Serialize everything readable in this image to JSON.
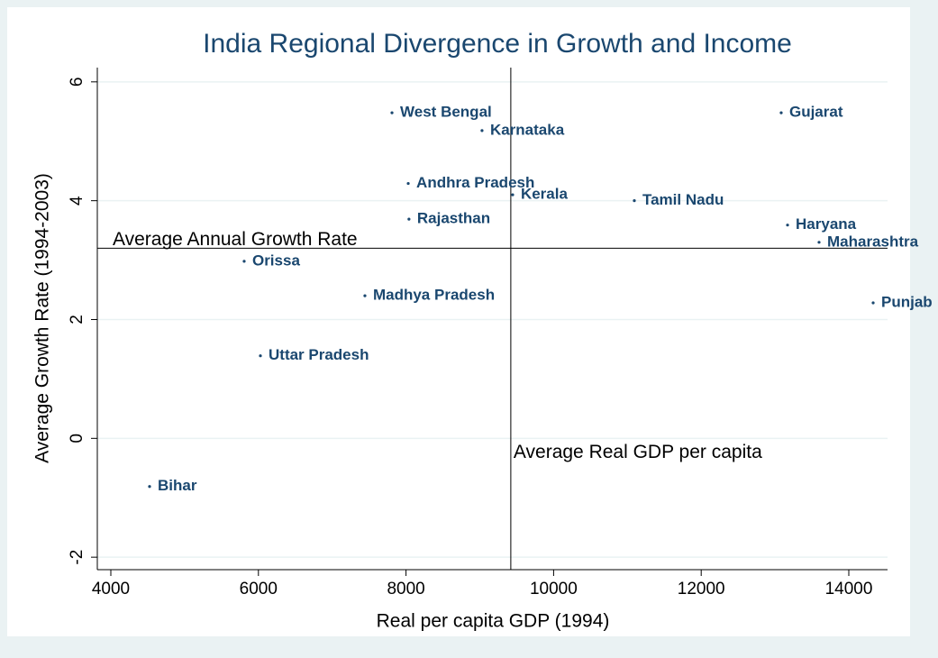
{
  "chart_data": {
    "type": "scatter",
    "title": "India Regional Divergence in Growth and Income",
    "x_label": "Real per capita GDP (1994)",
    "y_label": "Average Growth Rate (1994-2003)",
    "point_labels": [
      "West Bengal",
      "Karnataka",
      "Andhra Pradesh",
      "Kerala",
      "Tamil Nadu",
      "Rajasthan",
      "Gujarat",
      "Haryana",
      "Maharashtra",
      "Punjab",
      "Orissa",
      "Madhya Pradesh",
      "Uttar Pradesh",
      "Bihar"
    ],
    "x": [
      7810,
      9030,
      8030,
      9445,
      11094,
      8040,
      13084,
      13170,
      13597,
      14330,
      5807,
      7443,
      6027,
      4525
    ],
    "values": [
      5.48,
      5.18,
      4.29,
      4.1,
      4.0,
      3.69,
      5.48,
      3.59,
      3.3,
      2.28,
      2.98,
      2.4,
      1.39,
      -0.81
    ],
    "color": "#1a476f",
    "hline": {
      "value": 3.2,
      "label": "Average Annual Growth Rate"
    },
    "vline": {
      "value": 9420,
      "label": "Average Real GDP per capita"
    },
    "xlim": [
      3817,
      14525
    ],
    "ylim": [
      -2.21,
      6.24
    ],
    "xticks": [
      4000,
      6000,
      8000,
      10000,
      12000,
      14000
    ],
    "yticks": [
      -2,
      0,
      2,
      4,
      6
    ],
    "grid": true
  }
}
